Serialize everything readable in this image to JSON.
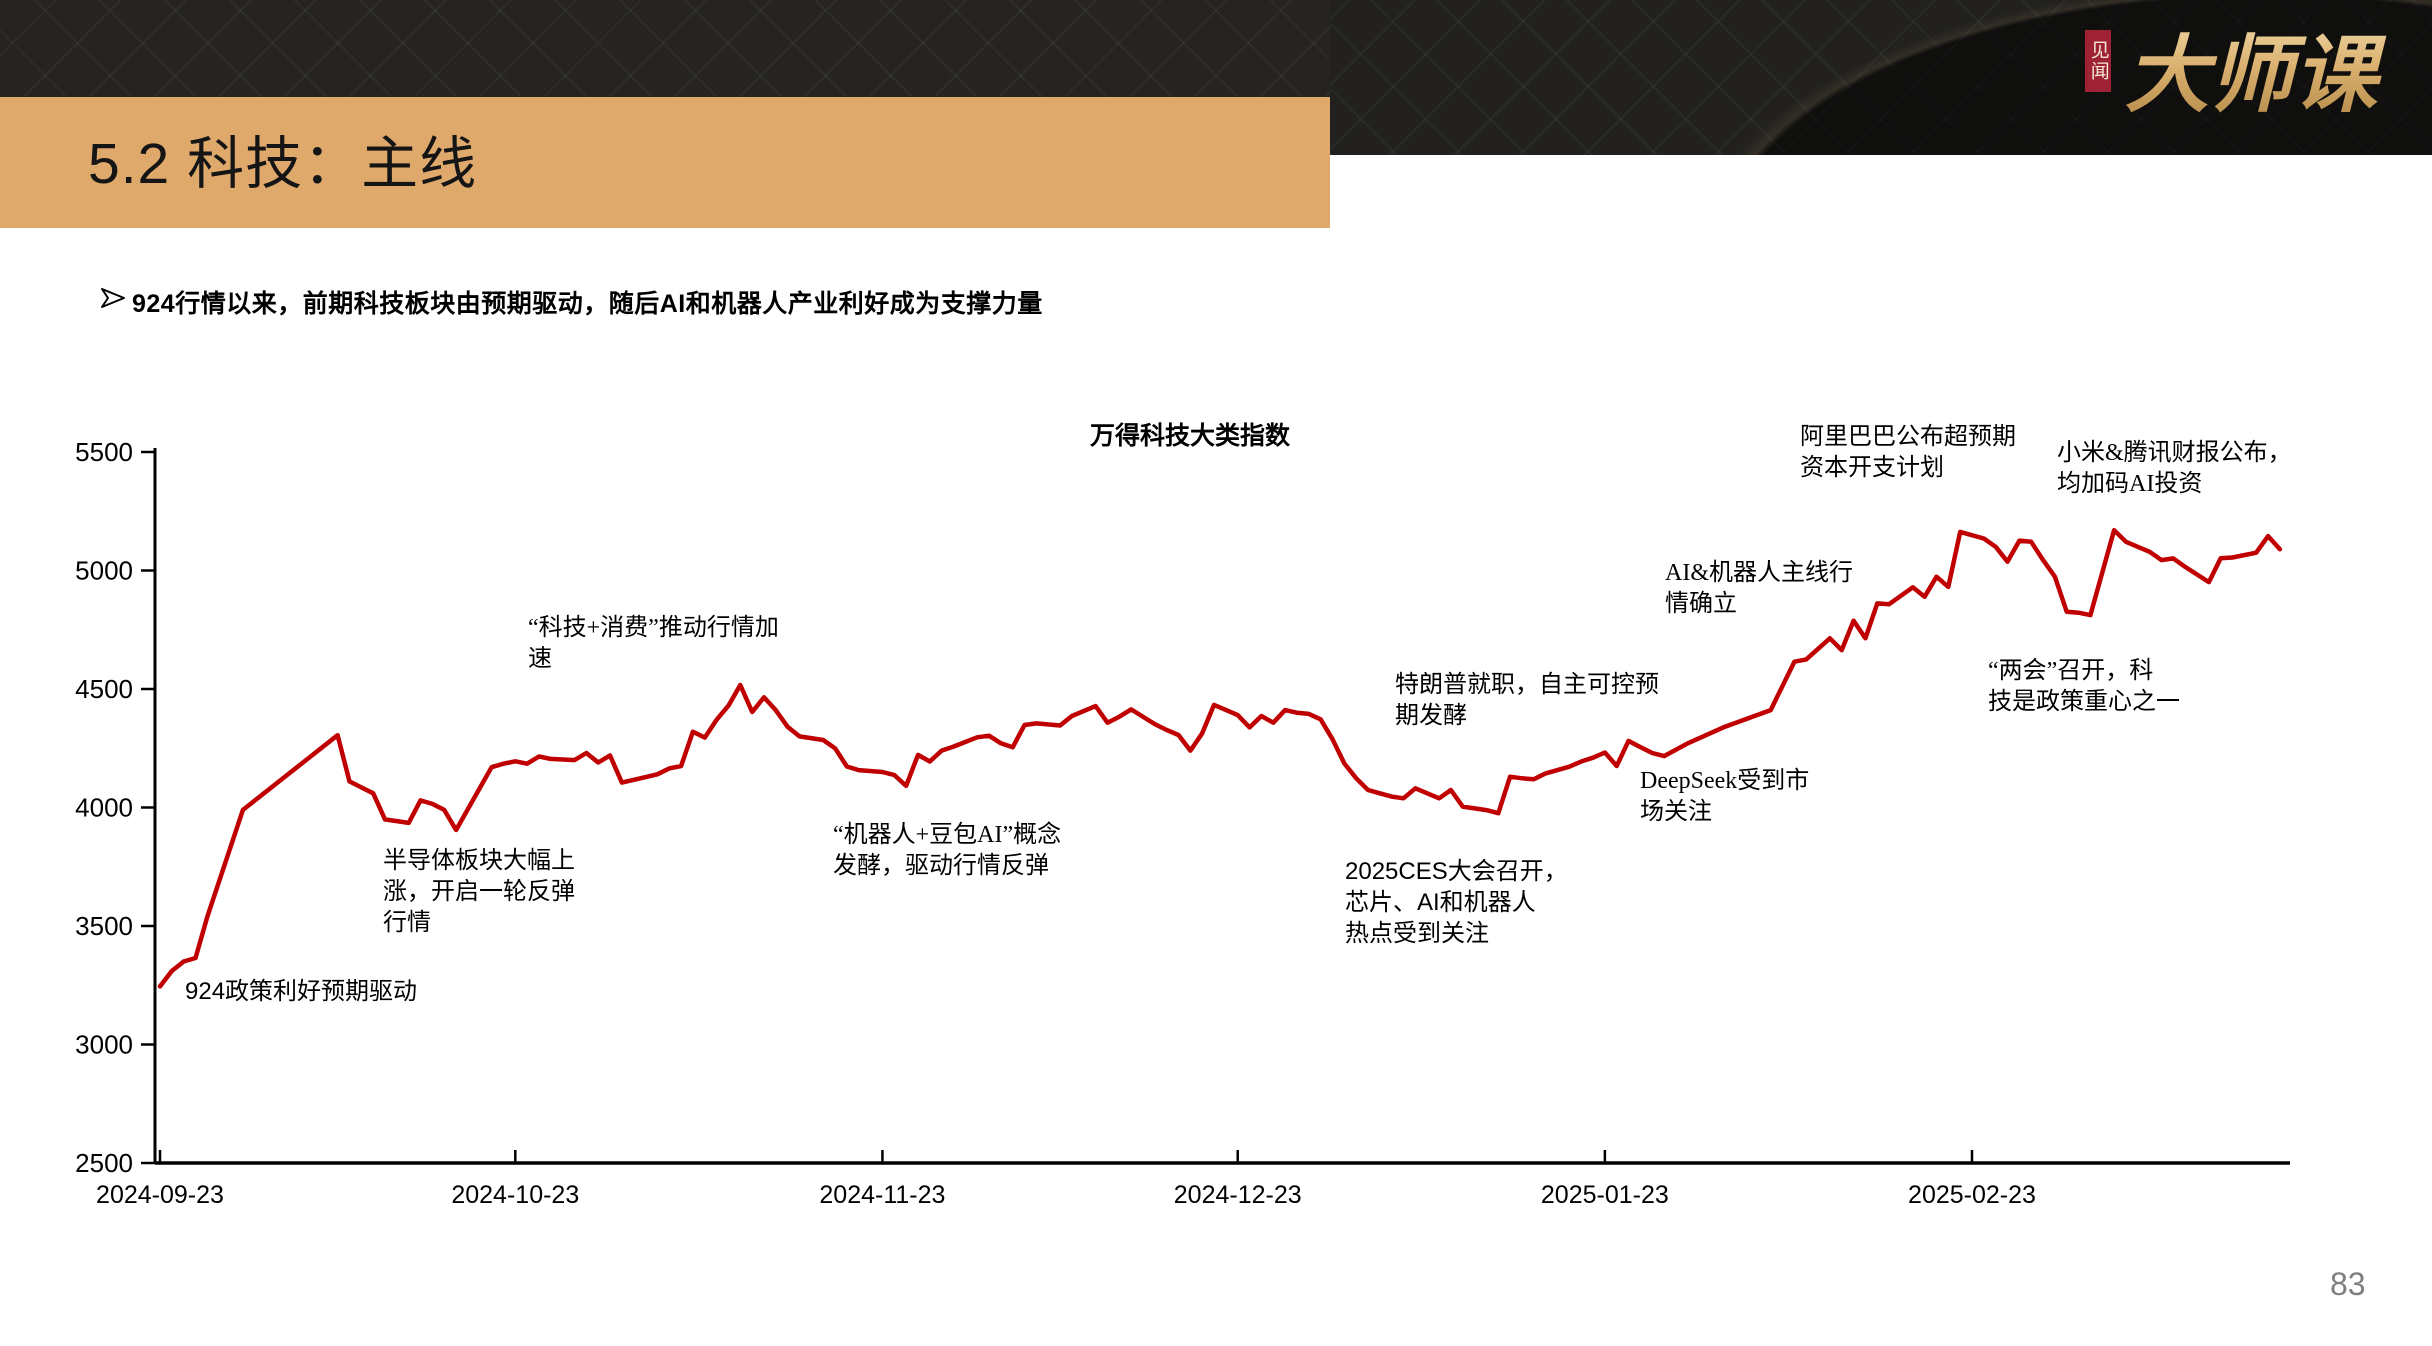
{
  "slide": {
    "title": "5.2 科技：主线",
    "bullet": "924行情以来，前期科技板块由预期驱动，随后AI和机器人产业利好成为支撑力量",
    "page_number": "83"
  },
  "logo": {
    "badge_text": "见闻",
    "brand_text": "大师课",
    "badge_color": "#9E2234",
    "gold_color": "#D9AF6E"
  },
  "chart_data": {
    "type": "line",
    "title": "万得科技大类指数",
    "line_color": "#C00000",
    "axis_color": "#000000",
    "ylim": [
      2500,
      5500
    ],
    "y_ticks": [
      2500,
      3000,
      3500,
      4000,
      4500,
      5000,
      5500
    ],
    "x_ticks": [
      {
        "label": "2024-09-23",
        "day": 0
      },
      {
        "label": "2024-10-23",
        "day": 30
      },
      {
        "label": "2024-11-23",
        "day": 61
      },
      {
        "label": "2024-12-23",
        "day": 91
      },
      {
        "label": "2025-01-23",
        "day": 122
      },
      {
        "label": "2025-02-23",
        "day": 153
      }
    ],
    "x_range_days": [
      0,
      180
    ],
    "grid": false,
    "legend": "none",
    "points": [
      [
        0,
        3245
      ],
      [
        1,
        3310
      ],
      [
        2,
        3350
      ],
      [
        3,
        3365
      ],
      [
        4,
        3540
      ],
      [
        7,
        3990
      ],
      [
        15,
        4305
      ],
      [
        16,
        4110
      ],
      [
        17,
        4085
      ],
      [
        18,
        4060
      ],
      [
        19,
        3950
      ],
      [
        21,
        3935
      ],
      [
        22,
        4030
      ],
      [
        23,
        4015
      ],
      [
        24,
        3990
      ],
      [
        25,
        3905
      ],
      [
        28,
        4170
      ],
      [
        29,
        4185
      ],
      [
        30,
        4195
      ],
      [
        31,
        4185
      ],
      [
        32,
        4215
      ],
      [
        33,
        4205
      ],
      [
        35,
        4200
      ],
      [
        36,
        4230
      ],
      [
        37,
        4190
      ],
      [
        38,
        4220
      ],
      [
        39,
        4105
      ],
      [
        42,
        4140
      ],
      [
        43,
        4165
      ],
      [
        44,
        4175
      ],
      [
        45,
        4320
      ],
      [
        46,
        4295
      ],
      [
        47,
        4370
      ],
      [
        48,
        4430
      ],
      [
        49,
        4517
      ],
      [
        50,
        4403
      ],
      [
        51,
        4465
      ],
      [
        52,
        4410
      ],
      [
        53,
        4340
      ],
      [
        54,
        4300
      ],
      [
        56,
        4285
      ],
      [
        57,
        4250
      ],
      [
        58,
        4173
      ],
      [
        59,
        4158
      ],
      [
        61,
        4150
      ],
      [
        62,
        4137
      ],
      [
        63,
        4091
      ],
      [
        64,
        4222
      ],
      [
        65,
        4194
      ],
      [
        66,
        4240
      ],
      [
        67,
        4257
      ],
      [
        69,
        4296
      ],
      [
        70,
        4303
      ],
      [
        71,
        4271
      ],
      [
        72,
        4254
      ],
      [
        73,
        4348
      ],
      [
        74,
        4355
      ],
      [
        76,
        4346
      ],
      [
        77,
        4386
      ],
      [
        79,
        4428
      ],
      [
        80,
        4358
      ],
      [
        81,
        4383
      ],
      [
        82,
        4414
      ],
      [
        84,
        4352
      ],
      [
        85,
        4327
      ],
      [
        86,
        4306
      ],
      [
        87,
        4240
      ],
      [
        88,
        4313
      ],
      [
        89,
        4433
      ],
      [
        90,
        4412
      ],
      [
        91,
        4390
      ],
      [
        92,
        4338
      ],
      [
        93,
        4386
      ],
      [
        94,
        4358
      ],
      [
        95,
        4411
      ],
      [
        96,
        4400
      ],
      [
        97,
        4395
      ],
      [
        98,
        4372
      ],
      [
        99,
        4288
      ],
      [
        100,
        4186
      ],
      [
        101,
        4123
      ],
      [
        102,
        4074
      ],
      [
        103,
        4060
      ],
      [
        104,
        4046
      ],
      [
        105,
        4039
      ],
      [
        106,
        4081
      ],
      [
        107,
        4060
      ],
      [
        108,
        4039
      ],
      [
        109,
        4074
      ],
      [
        110,
        4004
      ],
      [
        111,
        3996
      ],
      [
        112,
        3989
      ],
      [
        113,
        3976
      ],
      [
        114,
        4130
      ],
      [
        115,
        4123
      ],
      [
        116,
        4119
      ],
      [
        117,
        4144
      ],
      [
        118,
        4158
      ],
      [
        119,
        4172
      ],
      [
        120,
        4194
      ],
      [
        121,
        4210
      ],
      [
        122,
        4232
      ],
      [
        123,
        4175
      ],
      [
        124,
        4281
      ],
      [
        125,
        4255
      ],
      [
        126,
        4230
      ],
      [
        127,
        4217
      ],
      [
        129,
        4271
      ],
      [
        132,
        4338
      ],
      [
        136,
        4411
      ],
      [
        138,
        4615
      ],
      [
        139,
        4625
      ],
      [
        141,
        4714
      ],
      [
        142,
        4664
      ],
      [
        143,
        4788
      ],
      [
        144,
        4714
      ],
      [
        145,
        4861
      ],
      [
        146,
        4858
      ],
      [
        148,
        4929
      ],
      [
        149,
        4889
      ],
      [
        150,
        4974
      ],
      [
        151,
        4931
      ],
      [
        152,
        5163
      ],
      [
        154,
        5135
      ],
      [
        155,
        5100
      ],
      [
        156,
        5037
      ],
      [
        157,
        5126
      ],
      [
        158,
        5121
      ],
      [
        159,
        5044
      ],
      [
        160,
        4974
      ],
      [
        161,
        4826
      ],
      [
        162,
        4822
      ],
      [
        163,
        4812
      ],
      [
        165,
        5170
      ],
      [
        166,
        5121
      ],
      [
        167,
        5100
      ],
      [
        168,
        5079
      ],
      [
        169,
        5044
      ],
      [
        170,
        5051
      ],
      [
        171,
        5015
      ],
      [
        173,
        4951
      ],
      [
        174,
        5052
      ],
      [
        175,
        5055
      ],
      [
        177,
        5075
      ],
      [
        178,
        5145
      ],
      [
        179,
        5090
      ]
    ],
    "annotations": [
      {
        "id": "policy-924",
        "text": "924政策利好预期驱动"
      },
      {
        "id": "semiconductor-rebound",
        "text": "半导体板块大幅上\n涨，开启一轮反弹\n行情"
      },
      {
        "id": "tech-consumption",
        "text": "“科技+消费”推动行情加\n速"
      },
      {
        "id": "robot-doubao",
        "text": "“机器人+豆包AI”概念\n发酵，驱动行情反弹"
      },
      {
        "id": "ces-2025",
        "text": "2025CES大会召开，\n芯片、AI和机器人\n热点受到关注"
      },
      {
        "id": "trump-inauguration",
        "text": "特朗普就职，自主可控预\n期发酵"
      },
      {
        "id": "deepseek",
        "text": "DeepSeek受到市\n场关注"
      },
      {
        "id": "ai-robot-mainline",
        "text": "AI&机器人主线行\n情确立"
      },
      {
        "id": "alibaba-capex",
        "text": "阿里巴巴公布超预期\n资本开支计划"
      },
      {
        "id": "xiaomi-tencent",
        "text": "小米&腾讯财报公布，\n均加码AI投资"
      },
      {
        "id": "two-sessions",
        "text": "“两会”召开，科\n技是政策重心之一"
      }
    ]
  }
}
